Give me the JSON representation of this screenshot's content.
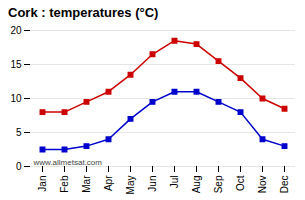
{
  "chart_data": {
    "type": "line",
    "title": "Cork : temperatures (°C)",
    "categories": [
      "Jan",
      "Feb",
      "Mar",
      "Apr",
      "May",
      "Jun",
      "Jul",
      "Aug",
      "Sep",
      "Oct",
      "Nov",
      "Dec"
    ],
    "series": [
      {
        "color": "#cc0000",
        "marker": "square",
        "line_style": "solid",
        "values": [
          8.0,
          8.0,
          9.5,
          11.0,
          13.5,
          16.5,
          18.5,
          18.0,
          15.5,
          13.0,
          10.0,
          8.5
        ]
      },
      {
        "color": "#0000cc",
        "marker": "square",
        "line_style": "solid",
        "values": [
          2.5,
          2.5,
          3.0,
          4.0,
          7.0,
          9.5,
          11.0,
          11.0,
          9.5,
          8.0,
          4.0,
          3.0
        ]
      }
    ],
    "ylim": [
      0,
      20
    ],
    "yticks": [
      0,
      5,
      10,
      15,
      20
    ],
    "grid": true,
    "annotations": [
      "www.allmetsat.com"
    ]
  }
}
